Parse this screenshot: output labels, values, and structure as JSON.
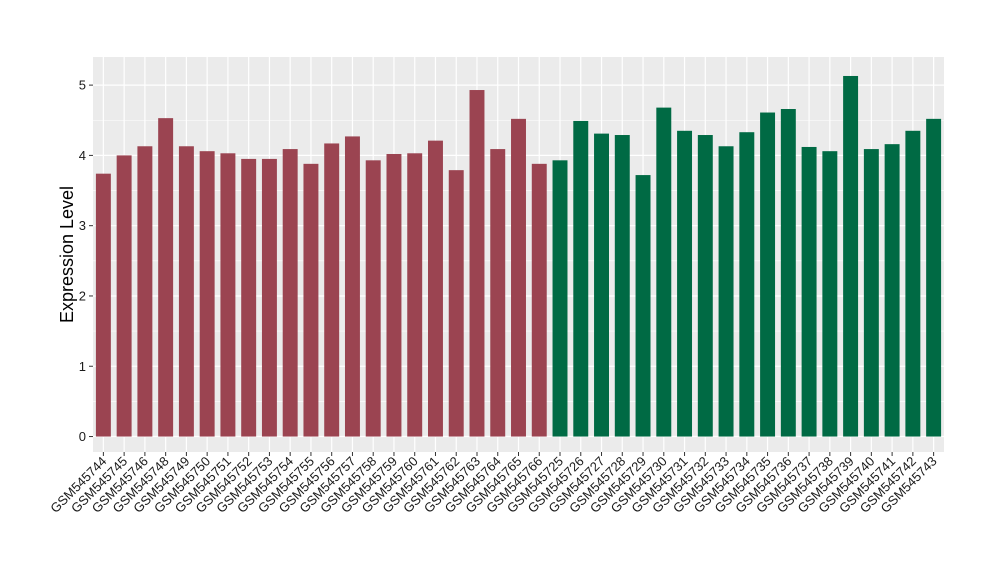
{
  "chart_data": {
    "type": "bar",
    "ylabel": "Expression Level",
    "xlabel": "",
    "ylim": [
      -0.22,
      5.4
    ],
    "yticks": [
      0,
      1,
      2,
      3,
      4,
      5
    ],
    "grid": true,
    "legend": "none",
    "categories": [
      "GSM545744",
      "GSM545745",
      "GSM545746",
      "GSM545748",
      "GSM545749",
      "GSM545750",
      "GSM545751",
      "GSM545752",
      "GSM545753",
      "GSM545754",
      "GSM545755",
      "GSM545756",
      "GSM545757",
      "GSM545758",
      "GSM545759",
      "GSM545760",
      "GSM545761",
      "GSM545762",
      "GSM545763",
      "GSM545764",
      "GSM545765",
      "GSM545766",
      "GSM545725",
      "GSM545726",
      "GSM545727",
      "GSM545728",
      "GSM545729",
      "GSM545730",
      "GSM545731",
      "GSM545732",
      "GSM545733",
      "GSM545734",
      "GSM545735",
      "GSM545736",
      "GSM545737",
      "GSM545738",
      "GSM545739",
      "GSM545740",
      "GSM545741",
      "GSM545742",
      "GSM545743"
    ],
    "values": [
      3.74,
      4.0,
      4.13,
      4.53,
      4.13,
      4.06,
      4.03,
      3.95,
      3.95,
      4.09,
      3.88,
      4.17,
      4.27,
      3.93,
      4.02,
      4.03,
      4.21,
      3.79,
      4.93,
      4.09,
      4.52,
      3.88,
      3.93,
      4.49,
      4.31,
      4.29,
      3.72,
      4.68,
      4.35,
      4.29,
      4.13,
      4.33,
      4.61,
      4.66,
      4.12,
      4.06,
      5.13,
      4.09,
      4.16,
      4.35,
      4.52
    ],
    "groups": [
      0,
      0,
      0,
      0,
      0,
      0,
      0,
      0,
      0,
      0,
      0,
      0,
      0,
      0,
      0,
      0,
      0,
      0,
      0,
      0,
      0,
      0,
      1,
      1,
      1,
      1,
      1,
      1,
      1,
      1,
      1,
      1,
      1,
      1,
      1,
      1,
      1,
      1,
      1,
      1,
      1
    ],
    "group_colors": [
      "#9b4451",
      "#006a44"
    ],
    "panel_background": "#ebebeb",
    "grid_color": "#ffffff"
  }
}
